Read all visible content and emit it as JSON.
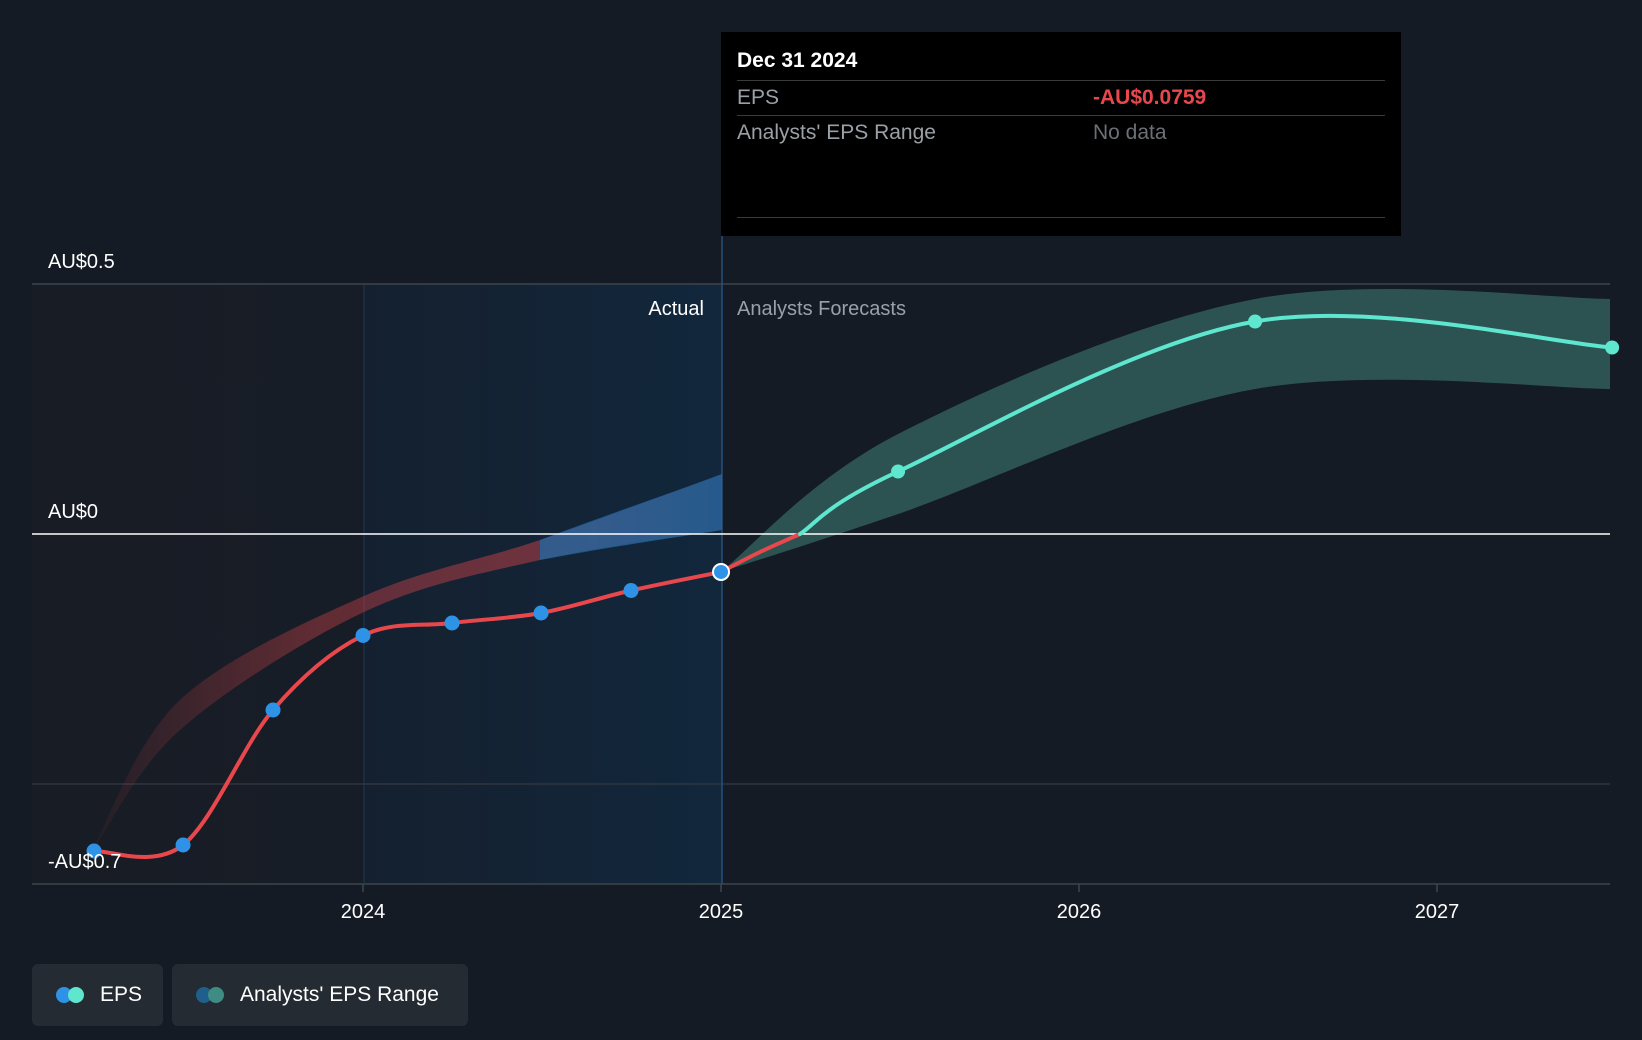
{
  "y_axis": {
    "top_label": "AU$0.5",
    "zero_label": "AU$0",
    "bottom_label": "-AU$0.7"
  },
  "x_axis": {
    "ticks": [
      "2024",
      "2025",
      "2026",
      "2027"
    ]
  },
  "regions": {
    "actual_label": "Actual",
    "forecast_label": "Analysts Forecasts"
  },
  "tooltip": {
    "date": "Dec 31 2024",
    "eps_label": "EPS",
    "eps_value": "-AU$0.0759",
    "range_label": "Analysts' EPS Range",
    "range_value": "No data"
  },
  "legend": {
    "eps": "EPS",
    "range": "Analysts' EPS Range"
  },
  "colors": {
    "background": "#151b24",
    "eps_actual": "#e8474c",
    "eps_point": "#2e93e6",
    "eps_forecast": "#5ee6cf",
    "forecast_band": "#2f5a58",
    "actual_highlight": "#132a40",
    "range_actual_blue": "#1f6aa6"
  },
  "chart_data": {
    "type": "line",
    "y_unit": "AU$",
    "ylim": [
      -0.7,
      0.5
    ],
    "x_ticks": [
      "2024",
      "2025",
      "2026",
      "2027"
    ],
    "series": [
      {
        "name": "EPS",
        "segment": "actual",
        "x": [
          "2023-03-31",
          "2023-06-30",
          "2023-09-30",
          "2023-12-31",
          "2024-03-31",
          "2024-06-30",
          "2024-09-30",
          "2024-12-31"
        ],
        "y": [
          -0.634,
          -0.622,
          -0.352,
          -0.203,
          -0.178,
          -0.158,
          -0.113,
          -0.0759
        ]
      },
      {
        "name": "EPS",
        "segment": "forecast",
        "x": [
          "2024-12-31",
          "2025-06-30",
          "2026-06-30",
          "2027-06-30"
        ],
        "y": [
          -0.0759,
          0.125,
          0.425,
          0.373
        ]
      },
      {
        "name": "Analysts' EPS Range",
        "x": [
          "2024-12-31",
          "2025-06-30",
          "2026-06-30",
          "2027-06-30"
        ],
        "low": [
          -0.0759,
          0.04,
          0.29,
          0.29
        ],
        "high": [
          -0.0759,
          0.2,
          0.47,
          0.47
        ]
      }
    ]
  }
}
